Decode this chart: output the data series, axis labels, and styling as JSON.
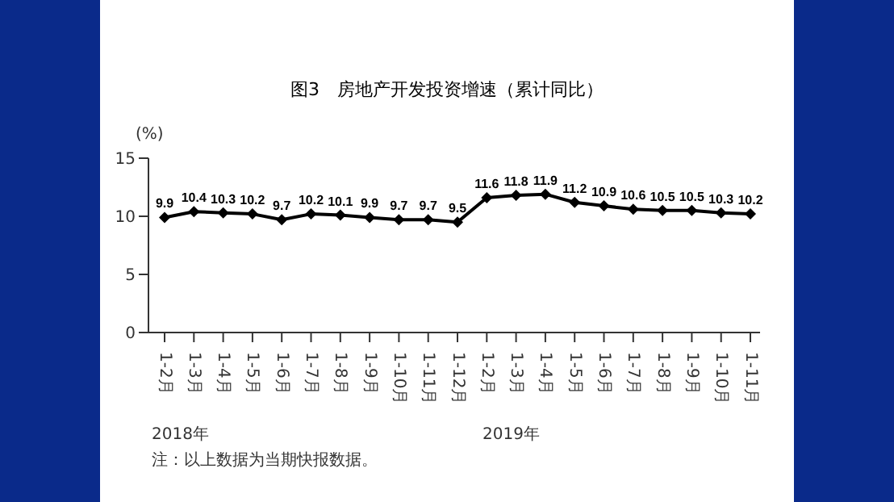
{
  "chart_data": {
    "type": "line",
    "title": "图3　房地产开发投资增速（累计同比）",
    "ylabel": "(%)",
    "categories": [
      "1-2月",
      "1-3月",
      "1-4月",
      "1-5月",
      "1-6月",
      "1-7月",
      "1-8月",
      "1-9月",
      "1-10月",
      "1-11月",
      "1-12月",
      "1-2月",
      "1-3月",
      "1-4月",
      "1-5月",
      "1-6月",
      "1-7月",
      "1-8月",
      "1-9月",
      "1-10月",
      "1-11月"
    ],
    "series": [
      {
        "color": "#000000",
        "values": [
          9.9,
          10.4,
          10.3,
          10.2,
          9.7,
          10.2,
          10.1,
          9.9,
          9.7,
          9.7,
          9.5,
          11.6,
          11.8,
          11.9,
          11.2,
          10.9,
          10.6,
          10.5,
          10.5,
          10.3,
          10.2
        ]
      }
    ],
    "ylim": [
      0,
      15
    ],
    "yticks": [
      0,
      5,
      10,
      15
    ],
    "grid": false,
    "legend": false,
    "marker": "diamond",
    "line_style": "solid",
    "data_labels": true,
    "annotations": [
      "2018年",
      "2019年",
      "注：以上数据为当期快报数据。"
    ]
  }
}
